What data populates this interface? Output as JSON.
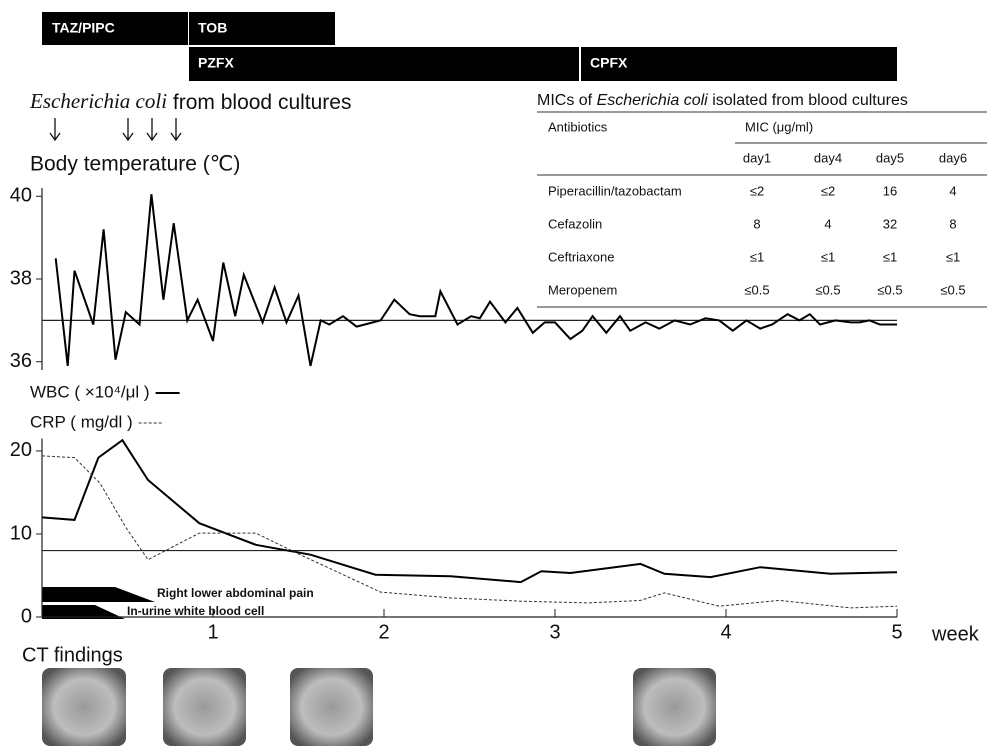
{
  "antibiotics": [
    "TAZ/PIPC",
    "TOB",
    "PZFX",
    "CPFX"
  ],
  "cultures": {
    "italic": "Escherichia coli",
    "text": "from blood cultures"
  },
  "symptoms": [
    "Right lower abdominal pain",
    "In-urine white blood cell"
  ],
  "ct": {
    "title": "CT findings"
  },
  "mic_table": {
    "title": {
      "prefix": "MICs of",
      "italic": "Escherichia coli",
      "suffix": "isolated from blood cultures"
    },
    "header": [
      "Antibiotics",
      "MIC (μg/ml)"
    ],
    "days": [
      "day1",
      "day4",
      "day5",
      "day6"
    ],
    "rows": [
      [
        "Piperacillin/tazobactam",
        "≤2",
        "≤2",
        "16",
        "4"
      ],
      [
        "Cefazolin",
        "8",
        "4",
        "32",
        "8"
      ],
      [
        "Ceftriaxone",
        "≤1",
        "≤1",
        "≤1",
        "≤1"
      ],
      [
        "Meropenem",
        "≤0.5",
        "≤0.5",
        "≤0.5",
        "≤0.5"
      ]
    ]
  },
  "chart_data": [
    {
      "type": "line",
      "title": "Body temperature (℃)",
      "xlim": [
        0,
        5
      ],
      "ylim": [
        35.8,
        40.2
      ],
      "yticks": [
        36,
        38,
        40
      ],
      "hline": 37,
      "x": [
        0.08,
        0.15,
        0.19,
        0.3,
        0.36,
        0.43,
        0.49,
        0.57,
        0.64,
        0.71,
        0.77,
        0.85,
        0.91,
        1.0,
        1.06,
        1.13,
        1.18,
        1.29,
        1.36,
        1.43,
        1.5,
        1.57,
        1.63,
        1.68,
        1.76,
        1.84,
        1.98,
        2.06,
        2.15,
        2.21,
        2.3,
        2.33,
        2.43,
        2.51,
        2.56,
        2.62,
        2.71,
        2.78,
        2.87,
        2.94,
        3.0,
        3.09,
        3.16,
        3.22,
        3.3,
        3.38,
        3.44,
        3.53,
        3.61,
        3.7,
        3.79,
        3.88,
        3.96,
        4.04,
        4.12,
        4.2,
        4.27,
        4.36,
        4.43,
        4.49,
        4.55,
        4.64,
        4.73,
        4.78,
        4.84,
        4.9,
        5.0
      ],
      "series": [
        {
          "color": "#000000",
          "values": [
            38.5,
            35.9,
            38.2,
            36.9,
            39.2,
            36.05,
            37.2,
            36.9,
            40.05,
            37.5,
            39.35,
            37.0,
            37.5,
            36.5,
            38.4,
            37.1,
            38.1,
            36.95,
            37.8,
            36.95,
            37.6,
            35.9,
            37.0,
            36.9,
            37.1,
            36.85,
            37.0,
            37.5,
            37.15,
            37.1,
            37.1,
            37.7,
            36.9,
            37.1,
            37.05,
            37.45,
            36.95,
            37.3,
            36.7,
            36.95,
            36.95,
            36.55,
            36.75,
            37.1,
            36.7,
            37.1,
            36.75,
            36.95,
            36.8,
            37.0,
            36.9,
            37.05,
            37.0,
            36.75,
            37.0,
            36.8,
            36.9,
            37.15,
            37.0,
            37.15,
            36.9,
            37.0,
            36.95,
            36.95,
            37.0,
            36.9,
            36.9
          ]
        }
      ]
    },
    {
      "type": "line",
      "xlim": [
        0,
        5
      ],
      "xticks": [
        1,
        2,
        3,
        4,
        5
      ],
      "xlabel": "week",
      "ylim": [
        0,
        21.5
      ],
      "yticks": [
        0,
        10,
        20
      ],
      "hline": 8,
      "series": [
        {
          "name": "WBC ( ×10⁴/μl )",
          "color": "#000000",
          "line_style": "solid",
          "x": [
            0,
            0.19,
            0.33,
            0.47,
            0.62,
            0.92,
            1.25,
            1.57,
            1.95,
            2.39,
            2.8,
            2.92,
            3.09,
            3.5,
            3.64,
            3.91,
            4.2,
            4.61,
            5.0
          ],
          "values": [
            12,
            11.7,
            19.2,
            21.3,
            16.5,
            11.3,
            8.7,
            7.5,
            5.1,
            4.9,
            4.2,
            5.5,
            5.3,
            6.4,
            5.2,
            4.8,
            6.0,
            5.2,
            5.4
          ]
        },
        {
          "name": "CRP ( mg/dl )",
          "color": "#333333",
          "line_style": "dashed",
          "x": [
            0,
            0.19,
            0.34,
            0.49,
            0.62,
            0.92,
            1.25,
            1.51,
            1.98,
            2.39,
            2.8,
            3.2,
            3.5,
            3.64,
            3.96,
            4.31,
            4.73,
            5.0
          ],
          "values": [
            19.4,
            19.2,
            16.1,
            10.8,
            6.9,
            10.1,
            10.1,
            7.5,
            3.0,
            2.3,
            1.9,
            1.7,
            2.0,
            2.9,
            1.3,
            2.0,
            1.1,
            1.3
          ]
        }
      ]
    }
  ]
}
